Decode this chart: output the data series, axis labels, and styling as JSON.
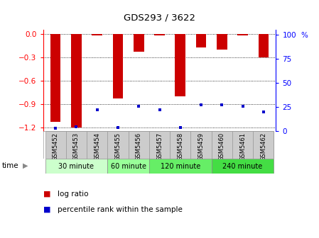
{
  "title": "GDS293 / 3622",
  "samples": [
    "GSM5452",
    "GSM5453",
    "GSM5454",
    "GSM5455",
    "GSM5456",
    "GSM5457",
    "GSM5458",
    "GSM5459",
    "GSM5460",
    "GSM5461",
    "GSM5462"
  ],
  "log_ratio": [
    -1.13,
    -1.2,
    -0.02,
    -0.83,
    -0.23,
    -0.02,
    -0.8,
    -0.18,
    -0.2,
    -0.02,
    -0.3
  ],
  "percentile_rank": [
    3,
    5,
    22,
    4,
    26,
    22,
    4,
    27,
    27,
    26,
    20
  ],
  "groups": [
    {
      "label": "30 minute",
      "samples": [
        "GSM5452",
        "GSM5453",
        "GSM5454"
      ],
      "color": "#ccffcc"
    },
    {
      "label": "60 minute",
      "samples": [
        "GSM5455",
        "GSM5456"
      ],
      "color": "#99ff99"
    },
    {
      "label": "120 minute",
      "samples": [
        "GSM5457",
        "GSM5458",
        "GSM5459"
      ],
      "color": "#66ee66"
    },
    {
      "label": "240 minute",
      "samples": [
        "GSM5460",
        "GSM5461",
        "GSM5462"
      ],
      "color": "#44dd44"
    }
  ],
  "ylim_left": [
    -1.25,
    0.05
  ],
  "ylim_right": [
    0,
    105
  ],
  "yticks_left": [
    0,
    -0.3,
    -0.6,
    -0.9,
    -1.2
  ],
  "yticks_right": [
    0,
    25,
    50,
    75,
    100
  ],
  "bar_color": "#cc0000",
  "percentile_color": "#0000cc",
  "bar_width": 0.5,
  "bg_color": "#ffffff",
  "sample_bg_color": "#cccccc",
  "time_label": "time"
}
